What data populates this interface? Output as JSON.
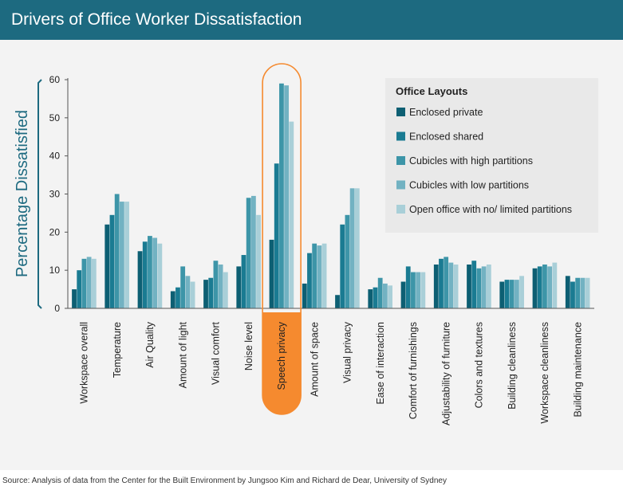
{
  "header": {
    "title": "Drivers of Office Worker Dissatisfaction"
  },
  "source": "Source: Analysis of data from the Center for the Built Environment by Jungsoo Kim and Richard de Dear, University of Sydney",
  "colors": {
    "header_bg": "#1d6a80",
    "highlight": "#f58a2f",
    "series": [
      "#0d5f73",
      "#1a7b92",
      "#3d95a8",
      "#72b2c2",
      "#a9cfd8"
    ]
  },
  "chart_data": {
    "type": "bar",
    "title": "Drivers of Office Worker Dissatisfaction",
    "ylabel": "Percentage Dissatisfied",
    "xlabel": "",
    "ylim": [
      0,
      60
    ],
    "yticks": [
      0,
      10,
      20,
      30,
      40,
      50,
      60
    ],
    "grid": false,
    "legend_title": "Office Layouts",
    "legend_position": "top-right",
    "highlighted_category": "Speech privacy",
    "categories": [
      "Workspace overall",
      "Temperature",
      "Air Quality",
      "Amount of light",
      "Visual comfort",
      "Noise level",
      "Speech privacy",
      "Amount of space",
      "Visual privacy",
      "Ease of interaction",
      "Comfort of furnishings",
      "Adjustability of furniture",
      "Colors and textures",
      "Building cleanliness",
      "Workspace cleanliness",
      "Building maintenance"
    ],
    "series": [
      {
        "name": "Enclosed private",
        "values": [
          5,
          22,
          15,
          4.5,
          7.5,
          11,
          18,
          6.5,
          3.5,
          5,
          7,
          11.5,
          11.5,
          7,
          10.5,
          8.5
        ]
      },
      {
        "name": "Enclosed shared",
        "values": [
          10,
          24.5,
          17.5,
          5.5,
          8,
          14,
          38,
          14.5,
          22,
          5.5,
          11,
          13,
          12.5,
          7.5,
          11,
          7
        ]
      },
      {
        "name": "Cubicles with high partitions",
        "values": [
          13,
          30,
          19,
          11,
          12.5,
          29,
          59,
          17,
          24.5,
          8,
          9.5,
          13.5,
          10.5,
          7.5,
          11.5,
          8
        ]
      },
      {
        "name": "Cubicles with low partitions",
        "values": [
          13.5,
          28,
          18.5,
          8.5,
          11.5,
          29.5,
          58.5,
          16.5,
          31.5,
          6.5,
          9.5,
          12,
          11,
          7.5,
          11,
          8
        ]
      },
      {
        "name": "Open office with no/ limited partitions",
        "values": [
          13,
          28,
          17,
          7,
          9.5,
          24.5,
          49,
          17,
          31.5,
          6,
          9.5,
          11.5,
          11.5,
          8.5,
          12,
          8
        ]
      }
    ]
  }
}
